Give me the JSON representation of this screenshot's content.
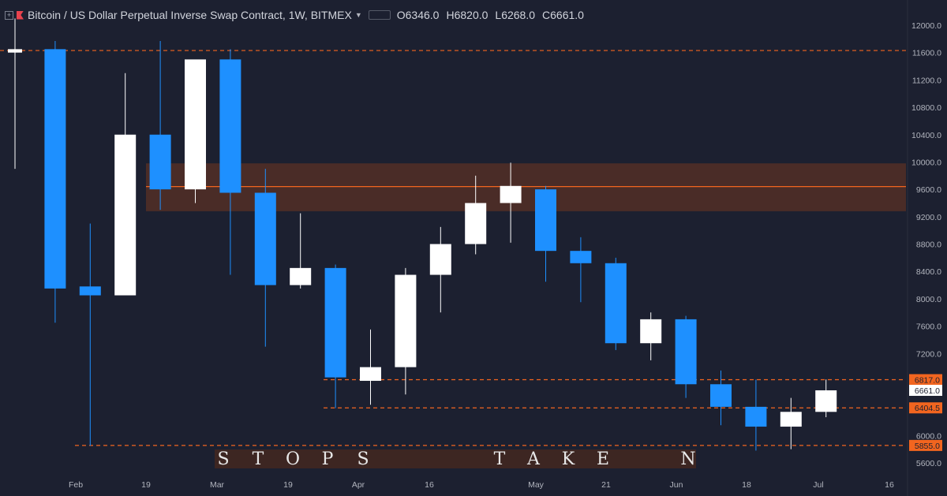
{
  "header": {
    "title": "Bitcoin / US Dollar Perpetual Inverse Swap Contract, 1W, BITMEX",
    "open": "O6346.0",
    "high": "H6820.0",
    "low": "L6268.0",
    "close": "C6661.0"
  },
  "annotation": {
    "letters": [
      "S",
      "T",
      "O",
      "P",
      "S",
      "T",
      "A",
      "K",
      "E",
      "N"
    ]
  },
  "colors": {
    "up": "#ffffff",
    "down": "#1e90ff",
    "level": "#f2651f",
    "zone": "#4a2c27",
    "background": "#1c2030"
  },
  "chart_data": {
    "type": "candlestick",
    "ylim": [
      5450,
      12200
    ],
    "yticks": [
      "5600.0",
      "6000.0",
      "6400.0",
      "6800.0",
      "7200.0",
      "7600.0",
      "8000.0",
      "8400.0",
      "8800.0",
      "9200.0",
      "9600.0",
      "10000.0",
      "10400.0",
      "10800.0",
      "11200.0",
      "11600.0",
      "12000.0"
    ],
    "xticks": [
      "Feb",
      "19",
      "Mar",
      "19",
      "Apr",
      "16",
      "May",
      "21",
      "Jun",
      "18",
      "Jul",
      "16"
    ],
    "candles": [
      {
        "o": 11600,
        "h": 12100,
        "l": 9900,
        "c": 11650
      },
      {
        "o": 11650,
        "h": 11770,
        "l": 7650,
        "c": 8150
      },
      {
        "o": 8180,
        "h": 9100,
        "l": 5850,
        "c": 8050
      },
      {
        "o": 8050,
        "h": 11300,
        "l": 8050,
        "c": 10400
      },
      {
        "o": 10400,
        "h": 11770,
        "l": 9300,
        "c": 9600
      },
      {
        "o": 9600,
        "h": 11450,
        "l": 9400,
        "c": 11500
      },
      {
        "o": 11500,
        "h": 11650,
        "l": 8350,
        "c": 9550
      },
      {
        "o": 9550,
        "h": 9900,
        "l": 7300,
        "c": 8200
      },
      {
        "o": 8200,
        "h": 9250,
        "l": 8150,
        "c": 8450
      },
      {
        "o": 8450,
        "h": 8500,
        "l": 6400,
        "c": 6850
      },
      {
        "o": 6800,
        "h": 7550,
        "l": 6450,
        "c": 7000
      },
      {
        "o": 7000,
        "h": 8450,
        "l": 6600,
        "c": 8350
      },
      {
        "o": 8350,
        "h": 9050,
        "l": 7800,
        "c": 8800
      },
      {
        "o": 8800,
        "h": 9800,
        "l": 8650,
        "c": 9400
      },
      {
        "o": 9400,
        "h": 9990,
        "l": 8820,
        "c": 9650
      },
      {
        "o": 9600,
        "h": 9650,
        "l": 8250,
        "c": 8700
      },
      {
        "o": 8700,
        "h": 8900,
        "l": 7950,
        "c": 8520
      },
      {
        "o": 8520,
        "h": 8600,
        "l": 7250,
        "c": 7350
      },
      {
        "o": 7350,
        "h": 7800,
        "l": 7100,
        "c": 7700
      },
      {
        "o": 7700,
        "h": 7750,
        "l": 6550,
        "c": 6750
      },
      {
        "o": 6750,
        "h": 6950,
        "l": 6150,
        "c": 6420
      },
      {
        "o": 6420,
        "h": 6817,
        "l": 5780,
        "c": 6130
      },
      {
        "o": 6130,
        "h": 6550,
        "l": 5800,
        "c": 6346
      },
      {
        "o": 6346,
        "h": 6820,
        "l": 6268,
        "c": 6661
      }
    ],
    "levels": [
      {
        "price": 11630,
        "label": ""
      },
      {
        "price": 9640,
        "label": ""
      },
      {
        "price": 6817,
        "label": "6817.0"
      },
      {
        "price": 6404.5,
        "label": "6404.5"
      },
      {
        "price": 5855,
        "label": "5855.0"
      }
    ],
    "last_price": {
      "price": 6661,
      "label": "6661.0"
    },
    "zone": {
      "from": 9280,
      "to": 9980
    }
  }
}
